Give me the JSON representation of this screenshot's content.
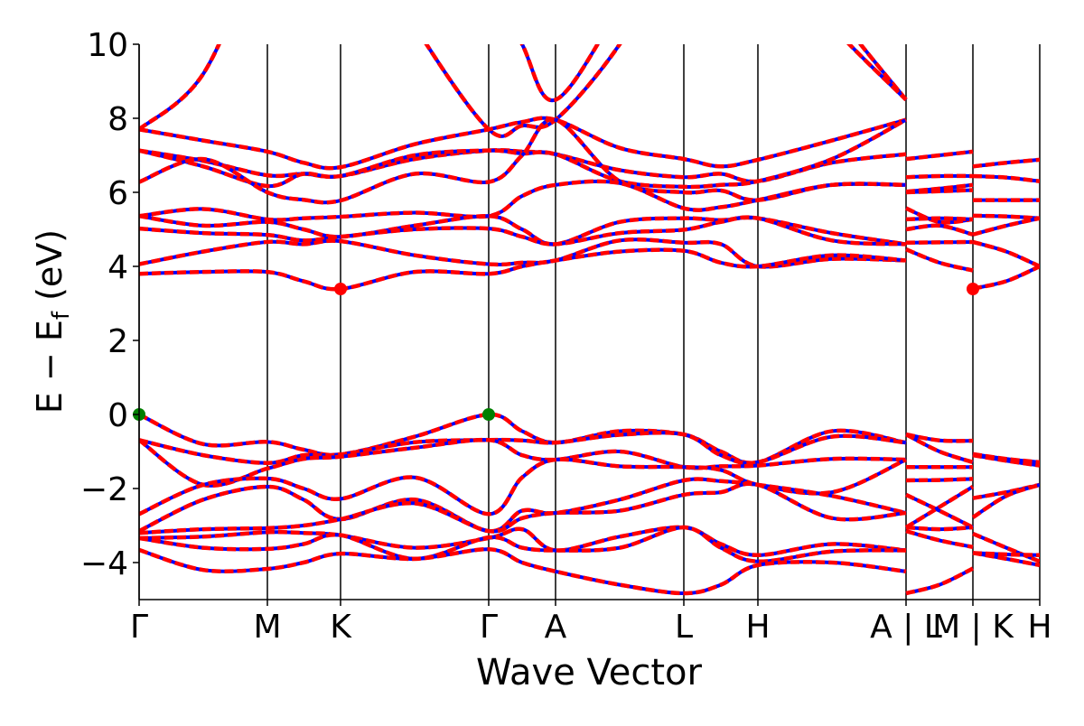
{
  "chart_data": {
    "type": "line",
    "title": "",
    "xlabel": "Wave Vector",
    "ylabel_main": "E − E",
    "ylabel_sub": "f",
    "ylabel_unit": " (eV)",
    "ylim": [
      -5,
      10
    ],
    "xlim": [
      0,
      9.97
    ],
    "yticks": [
      -4,
      -2,
      0,
      2,
      4,
      6,
      8,
      10
    ],
    "ytick_labels": [
      "−4",
      "−2",
      "0",
      "2",
      "4",
      "6",
      "8",
      "10"
    ],
    "xticks": [
      0,
      1.42,
      2.23,
      3.87,
      4.61,
      6.03,
      6.85,
      8.49,
      9.23,
      9.97
    ],
    "xtick_labels": [
      "Γ",
      "M",
      "K",
      "Γ",
      "A",
      "L",
      "H",
      "A | L",
      "M | K",
      "H"
    ],
    "colors": {
      "band_primary": "#ff0000",
      "band_secondary": "#0000ff",
      "vbm": "#008000",
      "cbm": "#ff0000",
      "kline": "#000000"
    },
    "segments": [
      {
        "k": [
          0,
          0.71,
          1.42,
          1.82,
          2.23,
          3.05,
          3.87,
          4.24,
          4.61,
          5.32,
          6.03,
          6.44,
          6.85,
          7.67,
          8.49
        ],
        "bands": [
          [
            12,
            14,
            16,
            16,
            16,
            14,
            12,
            10,
            8.5,
            11,
            14,
            14,
            14,
            11,
            8.5
          ],
          [
            7.7,
            9.2,
            13,
            14,
            14,
            10.5,
            7.7,
            7.8,
            7.96,
            10,
            13,
            13,
            13,
            10.5,
            8.5
          ],
          [
            7.7,
            7.4,
            7.1,
            6.8,
            6.68,
            7.3,
            7.7,
            7.9,
            7.96,
            7.2,
            6.9,
            6.7,
            6.88,
            7.4,
            7.96
          ],
          [
            7.13,
            6.85,
            6.46,
            6.5,
            6.44,
            6.9,
            7.13,
            7.1,
            7.03,
            6.6,
            6.41,
            6.5,
            6.3,
            6.8,
            7.03
          ],
          [
            7.13,
            6.7,
            6.17,
            6.5,
            6.44,
            7.0,
            7.13,
            7.05,
            7.03,
            6.3,
            6.15,
            6.2,
            6.3,
            6.9,
            7.96
          ],
          [
            6.28,
            6.9,
            6.0,
            5.8,
            5.78,
            6.5,
            6.28,
            7.0,
            7.96,
            6.3,
            6.0,
            6.05,
            5.79,
            6.2,
            6.2
          ],
          [
            5.36,
            5.55,
            5.27,
            5.3,
            5.34,
            5.45,
            5.36,
            5.9,
            6.2,
            6.25,
            5.57,
            5.6,
            5.79,
            6.2,
            6.2
          ],
          [
            5.36,
            5.1,
            5.2,
            5.0,
            4.8,
            5.1,
            5.36,
            5.0,
            4.6,
            5.2,
            5.3,
            5.25,
            5.3,
            4.9,
            4.6
          ],
          [
            5.02,
            4.9,
            4.85,
            4.7,
            4.8,
            5.0,
            5.02,
            4.8,
            4.6,
            4.9,
            4.99,
            5.2,
            5.3,
            4.7,
            4.6
          ],
          [
            4.06,
            4.4,
            4.66,
            4.6,
            4.68,
            4.3,
            4.06,
            4.1,
            4.16,
            4.7,
            4.64,
            4.6,
            4.0,
            4.2,
            4.16
          ],
          [
            3.8,
            3.85,
            3.85,
            3.6,
            3.39,
            3.85,
            3.8,
            4.0,
            4.16,
            4.4,
            4.42,
            4.1,
            4.0,
            4.3,
            4.16
          ],
          [
            0,
            -0.8,
            -0.74,
            -0.95,
            -1.08,
            -0.6,
            0,
            -0.45,
            -0.76,
            -0.45,
            -0.54,
            -1.0,
            -1.29,
            -0.45,
            -0.76
          ],
          [
            -0.69,
            -1.1,
            -1.31,
            -1.1,
            -1.08,
            -0.75,
            -0.69,
            -0.7,
            -0.76,
            -0.55,
            -0.54,
            -1.1,
            -1.29,
            -0.6,
            -0.76
          ],
          [
            -0.69,
            -1.9,
            -1.46,
            -1.2,
            -1.14,
            -0.9,
            -0.69,
            -1.1,
            -1.22,
            -1.0,
            -1.42,
            -1.4,
            -1.38,
            -1.2,
            -1.22
          ],
          [
            -2.69,
            -1.9,
            -1.73,
            -2.0,
            -2.28,
            -1.7,
            -2.69,
            -1.7,
            -1.22,
            -1.4,
            -1.42,
            -1.5,
            -1.9,
            -2.1,
            -1.22
          ],
          [
            -3.15,
            -2.3,
            -1.95,
            -2.3,
            -2.83,
            -2.3,
            -3.15,
            -2.6,
            -2.66,
            -2.3,
            -1.78,
            -1.8,
            -1.9,
            -2.2,
            -2.66
          ],
          [
            -3.2,
            -3.1,
            -3.07,
            -3.0,
            -2.83,
            -2.4,
            -3.15,
            -2.8,
            -2.66,
            -2.6,
            -2.17,
            -2.1,
            -1.9,
            -2.8,
            -2.66
          ],
          [
            -3.34,
            -3.3,
            -3.18,
            -3.2,
            -3.26,
            -3.6,
            -3.34,
            -3.1,
            -3.67,
            -3.3,
            -3.05,
            -3.5,
            -3.8,
            -3.5,
            -3.67
          ],
          [
            -3.34,
            -3.6,
            -3.63,
            -3.5,
            -3.26,
            -3.9,
            -3.32,
            -3.6,
            -3.67,
            -3.6,
            -3.05,
            -3.6,
            -3.97,
            -3.7,
            -3.67
          ],
          [
            -3.66,
            -4.2,
            -4.17,
            -4.0,
            -3.76,
            -3.9,
            -3.64,
            -4.0,
            -4.24,
            -4.6,
            -4.83,
            -4.6,
            -4.07,
            -4.0,
            -4.24
          ]
        ]
      },
      {
        "k": [
          8.49,
          8.86,
          9.23
        ],
        "bands": [
          [
            6.9,
            7.0,
            7.1
          ],
          [
            6.41,
            6.44,
            6.44
          ],
          [
            6.02,
            6.1,
            6.2
          ],
          [
            6.0,
            6.03,
            6.06
          ],
          [
            5.57,
            5.2,
            5.27
          ],
          [
            5.27,
            5.3,
            5.27
          ],
          [
            5.0,
            5.1,
            4.86
          ],
          [
            4.64,
            4.65,
            4.66
          ],
          [
            4.46,
            4.1,
            3.89
          ],
          [
            -0.54,
            -1.0,
            -1.29
          ],
          [
            -0.54,
            -0.7,
            -0.71
          ],
          [
            -1.42,
            -1.42,
            -1.42
          ],
          [
            -1.78,
            -1.77,
            -1.74
          ],
          [
            -2.17,
            -2.6,
            -3.05
          ],
          [
            -3.05,
            -2.5,
            -1.95
          ],
          [
            -3.05,
            -3.1,
            -3.05
          ],
          [
            -3.15,
            -3.4,
            -3.58
          ],
          [
            -4.83,
            -4.6,
            -4.16
          ]
        ]
      },
      {
        "k": [
          9.23,
          9.6,
          9.97
        ],
        "bands": [
          [
            6.7,
            6.8,
            6.88
          ],
          [
            6.44,
            6.4,
            6.3
          ],
          [
            5.79,
            5.79,
            5.79
          ],
          [
            5.37,
            5.35,
            5.3
          ],
          [
            4.86,
            5.1,
            5.3
          ],
          [
            4.66,
            4.4,
            4.0
          ],
          [
            3.4,
            3.6,
            4.0
          ],
          [
            -1.07,
            -1.2,
            -1.29
          ],
          [
            -1.1,
            -1.25,
            -1.38
          ],
          [
            -2.26,
            -2.1,
            -1.9
          ],
          [
            -2.78,
            -2.2,
            -1.9
          ],
          [
            -3.22,
            -3.6,
            -3.97
          ],
          [
            -3.74,
            -3.78,
            -3.8
          ],
          [
            -3.74,
            -3.9,
            -4.07
          ]
        ]
      }
    ],
    "vbm_points": [
      [
        0,
        0
      ],
      [
        3.87,
        0
      ]
    ],
    "cbm_points": [
      [
        2.23,
        3.39
      ],
      [
        9.23,
        3.39
      ]
    ]
  }
}
